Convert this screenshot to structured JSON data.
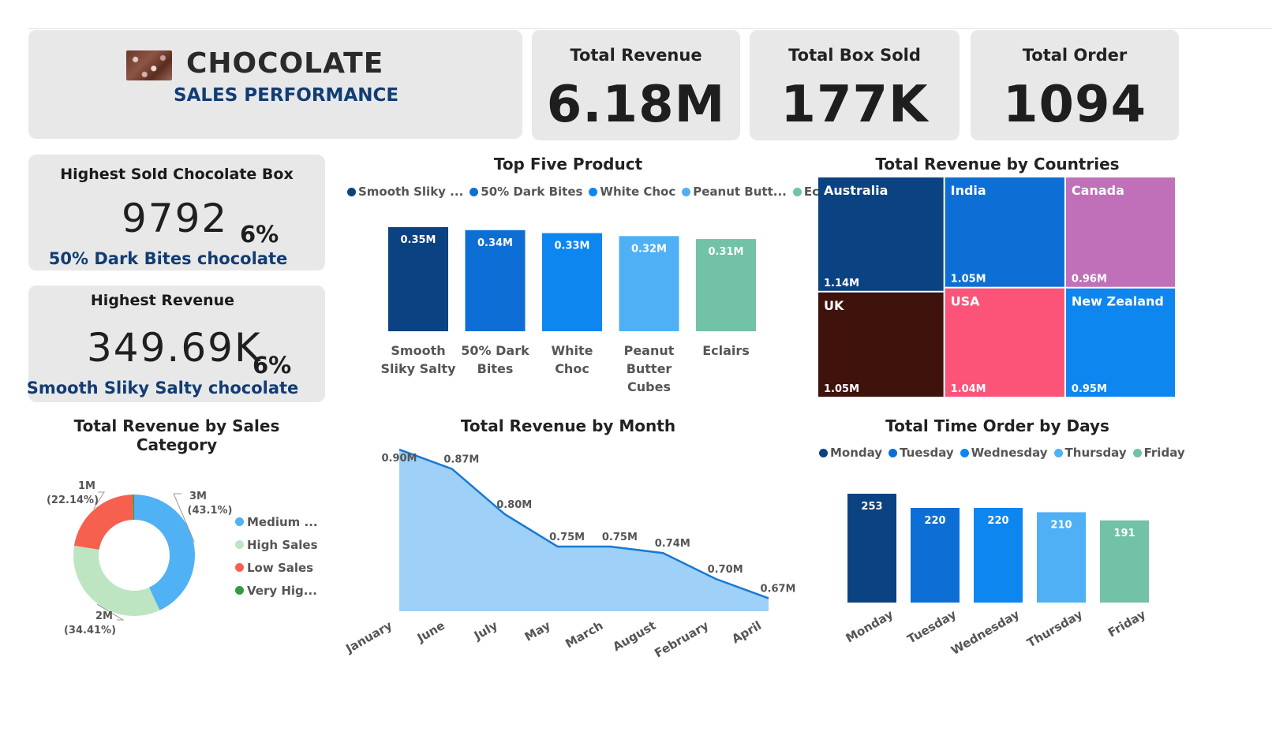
{
  "header": {
    "title": "CHOCOLATE",
    "subtitle": "SALES PERFORMANCE",
    "logo_icon": "chocolate-image"
  },
  "kpis": [
    {
      "label": "Total Revenue",
      "value": "6.18M"
    },
    {
      "label": "Total Box Sold",
      "value": "177K"
    },
    {
      "label": "Total Order",
      "value": "1094"
    }
  ],
  "highlights": {
    "box": {
      "title": "Highest Sold Chocolate Box",
      "value": "9792",
      "pct": "6%",
      "name": "50% Dark Bites chocolate"
    },
    "revenue": {
      "title": "Highest Revenue",
      "value": "349.69K",
      "pct": "6%",
      "name": "Smooth Sliky Salty chocolate"
    }
  },
  "colors": {
    "navy": "#0b4282",
    "blue": "#0d6fd6",
    "bright_blue": "#0e86f0",
    "light_blue": "#4fb0f5",
    "teal": "#72c2a8",
    "purple": "#c070b8",
    "dark_brown": "#3f120c",
    "pink": "#fb5478",
    "area_fill": "#9ed0f8",
    "area_line": "#1a78d2",
    "donut_medium": "#51b1f5",
    "donut_high": "#bee5c1",
    "donut_low": "#f6604f",
    "donut_very_high": "#2f9b46"
  },
  "chart_data": [
    {
      "id": "top_products",
      "type": "bar",
      "title": "Top Five Product",
      "legend": [
        "Smooth Sliky ...",
        "50% Dark Bites",
        "White Choc",
        "Peanut Butt...",
        "Eclairs"
      ],
      "categories": [
        [
          "Smooth",
          "Sliky Salty"
        ],
        [
          "50% Dark",
          "Bites"
        ],
        [
          "White",
          "Choc"
        ],
        [
          "Peanut",
          "Butter",
          "Cubes"
        ],
        [
          "Eclairs"
        ]
      ],
      "values": [
        0.35,
        0.34,
        0.33,
        0.32,
        0.31
      ],
      "labels": [
        "0.35M",
        "0.34M",
        "0.33M",
        "0.32M",
        "0.31M"
      ],
      "colors": [
        "#0b4282",
        "#0d6fd6",
        "#0e86f0",
        "#4fb0f5",
        "#72c2a8"
      ]
    },
    {
      "id": "revenue_by_country",
      "type": "treemap",
      "title": "Total Revenue by Countries",
      "items": [
        {
          "name": "Australia",
          "value": 1.14,
          "label": "1.14M",
          "color": "#0b4282"
        },
        {
          "name": "UK",
          "value": 1.05,
          "label": "1.05M",
          "color": "#3f120c"
        },
        {
          "name": "India",
          "value": 1.05,
          "label": "1.05M",
          "color": "#0d6fd6"
        },
        {
          "name": "USA",
          "value": 1.04,
          "label": "1.04M",
          "color": "#fb5478"
        },
        {
          "name": "Canada",
          "value": 0.96,
          "label": "0.96M",
          "color": "#c070b8"
        },
        {
          "name": "New Zealand",
          "value": 0.95,
          "label": "0.95M",
          "color": "#0e86f0"
        }
      ]
    },
    {
      "id": "revenue_by_category",
      "type": "pie",
      "title": "Total Revenue by Sales Category",
      "slices": [
        {
          "name": "Medium ...",
          "value": 3,
          "label": "3M",
          "pct": "(43.1%)",
          "color": "#51b1f5"
        },
        {
          "name": "High Sales",
          "value": 2,
          "label": "2M",
          "pct": "(34.41%)",
          "color": "#bee5c1"
        },
        {
          "name": "Low Sales",
          "value": 1,
          "label": "1M",
          "pct": "(22.14%)",
          "color": "#f6604f"
        },
        {
          "name": "Very Hig...",
          "value": 0,
          "label": "",
          "pct": "",
          "color": "#2f9b46"
        }
      ],
      "percents": [
        43.1,
        34.41,
        22.14,
        0.35
      ]
    },
    {
      "id": "revenue_by_month",
      "type": "area",
      "title": "Total Revenue by Month",
      "categories": [
        "January",
        "June",
        "July",
        "May",
        "March",
        "August",
        "February",
        "April"
      ],
      "values": [
        0.9,
        0.87,
        0.8,
        0.75,
        0.75,
        0.74,
        0.7,
        0.67
      ],
      "labels": [
        "0.90M",
        "0.87M",
        "0.80M",
        "0.75M",
        "0.75M",
        "0.74M",
        "0.70M",
        "0.67M"
      ],
      "ylim": [
        0.65,
        0.9
      ]
    },
    {
      "id": "orders_by_day",
      "type": "bar",
      "title": "Total Time Order by Days",
      "legend": [
        "Monday",
        "Tuesday",
        "Wednesday",
        "Thursday",
        "Friday"
      ],
      "categories": [
        "Monday",
        "Tuesday",
        "Wednesday",
        "Thursday",
        "Friday"
      ],
      "values": [
        253,
        220,
        220,
        210,
        191
      ],
      "labels": [
        "253",
        "220",
        "220",
        "210",
        "191"
      ],
      "colors": [
        "#0b4282",
        "#0d6fd6",
        "#0e86f0",
        "#4fb0f5",
        "#72c2a8"
      ]
    }
  ]
}
